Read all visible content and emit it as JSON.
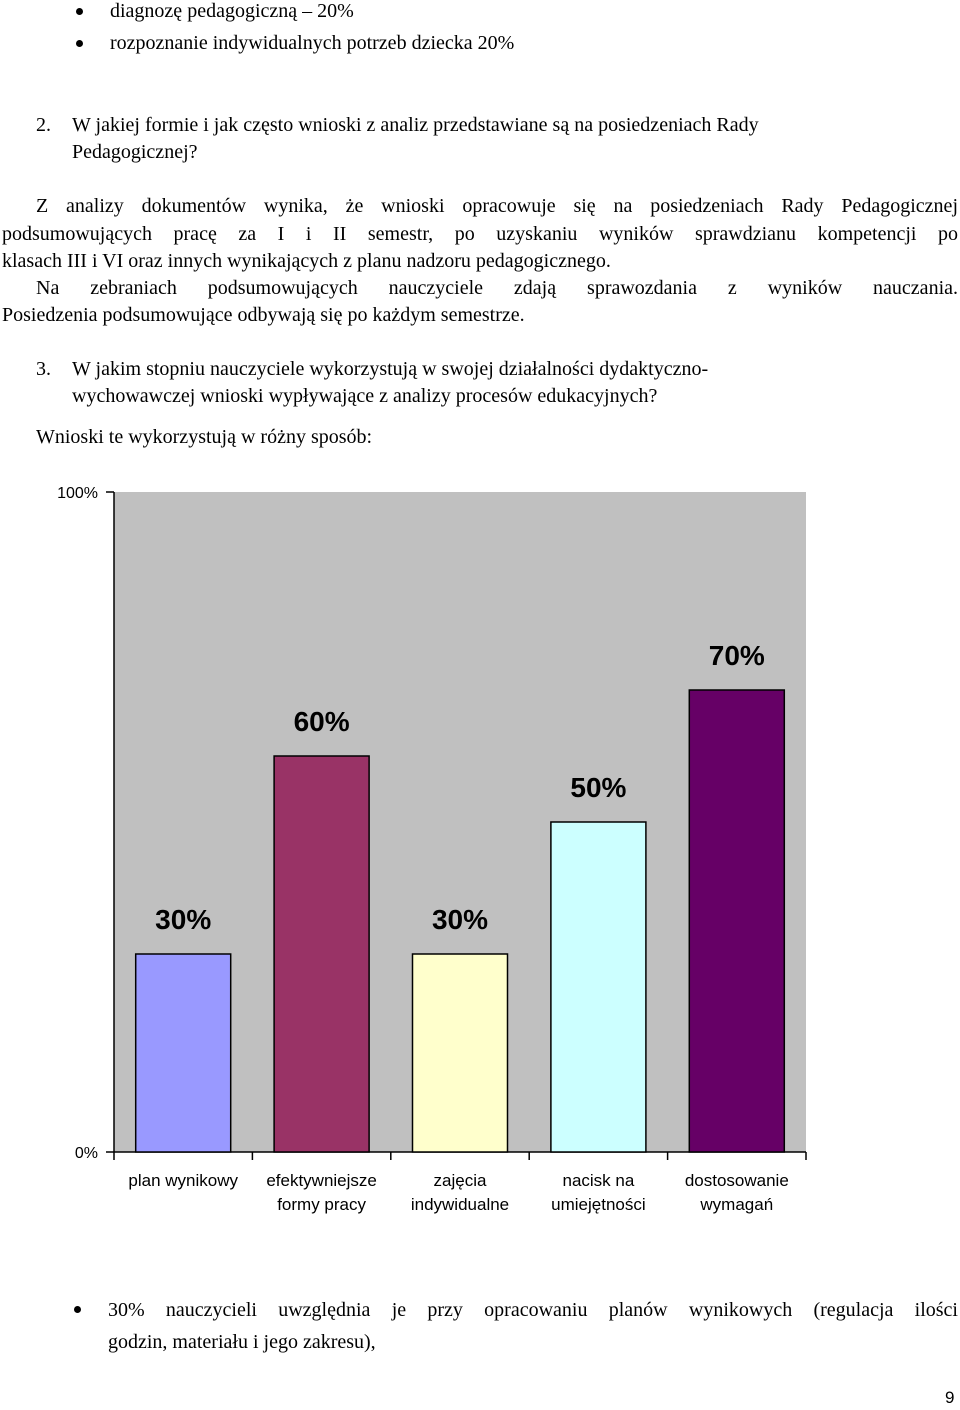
{
  "top_bullets": [
    "diagnozę pedagogiczną – 20%",
    "rozpoznanie indywidualnych potrzeb dziecka 20%"
  ],
  "q2": {
    "number": "2.",
    "lines": [
      "W jakiej formie i jak często wnioski z analiz przedstawiane są na posiedzeniach Rady",
      "Pedagogicznej?"
    ]
  },
  "para1": [
    "Z analizy dokumentów wynika, że wnioski opracowuje się na posiedzeniach Rady Pedagogicznej",
    "podsumowujących pracę za I i II semestr, po uzyskaniu wyników sprawdzianu kompetencji po",
    "klasach III i VI oraz innych wynikających z planu nadzoru pedagogicznego.",
    "Na zebraniach podsumowujących nauczyciele zdają sprawozdania z wyników nauczania.",
    "Posiedzenia podsumowujące odbywają się po każdym semestrze."
  ],
  "q3": {
    "number": "3.",
    "lines": [
      "W jakim stopniu nauczyciele wykorzystują w swojej działalności dydaktyczno-",
      "wychowawczej wnioski wypływające z analizy procesów edukacyjnych?"
    ]
  },
  "intro": "Wnioski te wykorzystują w różny sposób:",
  "chart_data": {
    "type": "bar",
    "categories": [
      [
        "plan wynikowy"
      ],
      [
        "efektywniejsze",
        "formy pracy"
      ],
      [
        "zajęcia",
        "indywidualne"
      ],
      [
        "nacisk na",
        "umiejętności"
      ],
      [
        "dostosowanie",
        "wymagań"
      ]
    ],
    "values": [
      30,
      60,
      30,
      50,
      70
    ],
    "value_labels": [
      "30%",
      "60%",
      "30%",
      "50%",
      "70%"
    ],
    "colors": [
      "#9999ff",
      "#993366",
      "#ffffcc",
      "#ccffff",
      "#660066"
    ],
    "plot_background": "#c0c0c0",
    "ylim": [
      0,
      100
    ],
    "y_ticks": [
      "0%",
      "100%"
    ]
  },
  "bottom_bullet": {
    "lines": [
      "30%  nauczycieli uwzględnia je przy opracowaniu planów wynikowych (regulacja ilości",
      "godzin, materiału i jego zakresu),"
    ]
  },
  "page_number": "9"
}
